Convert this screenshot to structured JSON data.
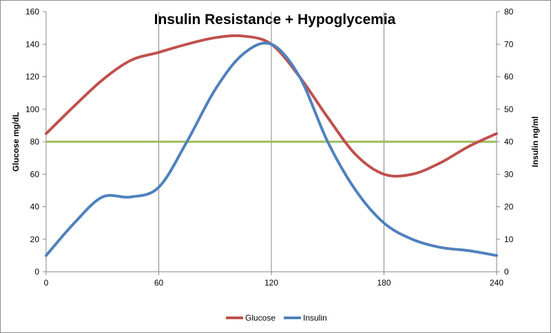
{
  "chart_data": {
    "type": "line",
    "title": "Insulin Resistance + Hypoglycemia",
    "ylabel_left": "Glucose  mg/dL",
    "ylabel_right": "Insulin ng/ml",
    "x_ticks": [
      "0",
      "60",
      "120",
      "180",
      "240"
    ],
    "xlim": [
      0,
      240
    ],
    "y_left_ticks": [
      "0",
      "20",
      "40",
      "60",
      "80",
      "100",
      "120",
      "140",
      "160"
    ],
    "y_left_lim": [
      0,
      160
    ],
    "y_right_ticks": [
      "0",
      "10",
      "20",
      "30",
      "40",
      "50",
      "60",
      "70",
      "80"
    ],
    "y_right_lim": [
      0,
      80
    ],
    "vertical_gridlines": [
      60,
      120,
      180
    ],
    "reference_line": {
      "axis": "left",
      "value": 80,
      "color": "#9bbb59"
    },
    "legend_position": "bottom",
    "series": [
      {
        "name": "Glucose",
        "axis": "left",
        "color": "#c0504d",
        "x": [
          0,
          15,
          30,
          45,
          60,
          75,
          90,
          105,
          120,
          135,
          150,
          165,
          180,
          195,
          210,
          225,
          240
        ],
        "values": [
          85,
          102,
          118,
          130,
          135,
          140,
          144,
          145,
          140,
          120,
          95,
          72,
          60,
          60,
          67,
          77,
          85
        ]
      },
      {
        "name": "Insulin",
        "axis": "right",
        "color": "#4f81bd",
        "x": [
          0,
          15,
          30,
          45,
          60,
          75,
          90,
          105,
          120,
          135,
          150,
          165,
          180,
          195,
          210,
          225,
          240
        ],
        "values": [
          5,
          15,
          23,
          23,
          26,
          40,
          56,
          67,
          70,
          60,
          40,
          25,
          15,
          10,
          7.5,
          6.5,
          5
        ]
      }
    ]
  }
}
